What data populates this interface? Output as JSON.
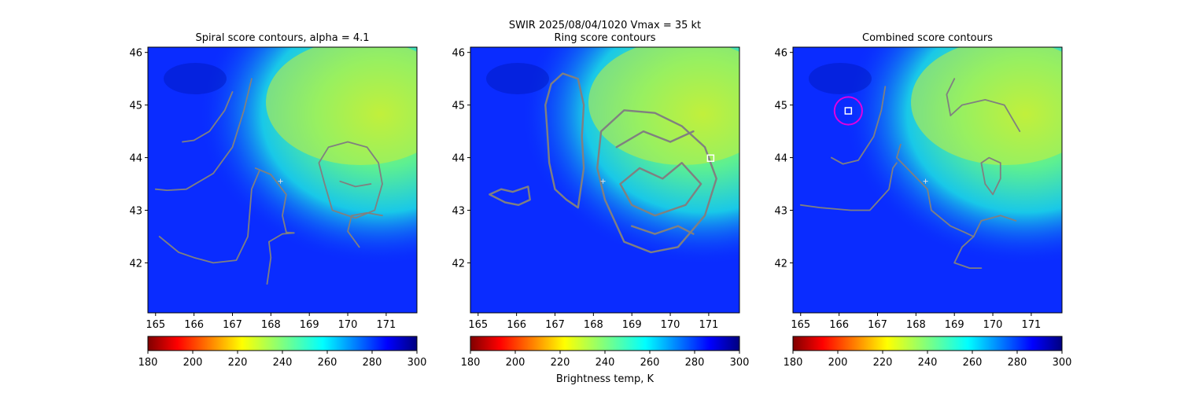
{
  "figure": {
    "suptitle_line1": "SWIR  2025/08/04/1020    Vmax = 35 kt",
    "colorbar_label": "Brightness temp, K"
  },
  "chart_data": [
    {
      "type": "heatmap",
      "title": "Spiral score contours, alpha =  4.1",
      "xlim": [
        164.8,
        171.8
      ],
      "ylim": [
        41.05,
        46.1
      ],
      "xticks": [
        165,
        166,
        167,
        168,
        169,
        170,
        171
      ],
      "yticks": [
        42,
        43,
        44,
        45,
        46
      ],
      "colorbar": {
        "cmap": "jet_r",
        "range": [
          180,
          300
        ],
        "ticks": [
          180,
          200,
          220,
          240,
          260,
          280,
          300
        ]
      },
      "center_marker": {
        "x": 168.25,
        "y": 43.55,
        "style": "plus"
      },
      "contours": [
        [
          [
            165.7,
            44.3
          ],
          [
            166.0,
            44.33
          ],
          [
            166.4,
            44.5
          ],
          [
            166.8,
            44.9
          ],
          [
            167.0,
            45.25
          ]
        ],
        [
          [
            165.0,
            43.4
          ],
          [
            165.3,
            43.38
          ],
          [
            165.8,
            43.4
          ],
          [
            166.5,
            43.7
          ],
          [
            167.0,
            44.2
          ],
          [
            167.3,
            44.9
          ],
          [
            167.5,
            45.5
          ]
        ],
        [
          [
            167.6,
            43.8
          ],
          [
            168.0,
            43.68
          ],
          [
            168.4,
            43.3
          ],
          [
            168.3,
            42.9
          ],
          [
            168.4,
            42.58
          ],
          [
            168.6,
            42.57
          ]
        ],
        [
          [
            165.1,
            42.5
          ],
          [
            165.6,
            42.2
          ],
          [
            166.0,
            42.1
          ],
          [
            166.5,
            42.0
          ],
          [
            167.1,
            42.05
          ],
          [
            167.4,
            42.5
          ],
          [
            167.5,
            43.4
          ],
          [
            167.7,
            43.75
          ]
        ],
        [
          [
            167.9,
            41.6
          ],
          [
            168.0,
            42.1
          ],
          [
            167.95,
            42.4
          ],
          [
            168.3,
            42.55
          ],
          [
            168.6,
            42.57
          ]
        ],
        [
          [
            169.4,
            43.5
          ],
          [
            169.25,
            43.9
          ],
          [
            169.5,
            44.2
          ],
          [
            170.0,
            44.3
          ],
          [
            170.5,
            44.2
          ],
          [
            170.8,
            43.9
          ],
          [
            170.9,
            43.5
          ],
          [
            170.7,
            43.0
          ],
          [
            170.2,
            42.85
          ],
          [
            169.6,
            43.0
          ],
          [
            169.4,
            43.5
          ]
        ],
        [
          [
            170.3,
            42.3
          ],
          [
            170.0,
            42.6
          ],
          [
            170.1,
            42.9
          ],
          [
            170.5,
            42.95
          ],
          [
            170.9,
            42.9
          ]
        ],
        [
          [
            169.8,
            43.55
          ],
          [
            170.2,
            43.45
          ],
          [
            170.6,
            43.5
          ]
        ]
      ],
      "markers": []
    },
    {
      "type": "heatmap",
      "title": "Ring score contours",
      "xlim": [
        164.8,
        171.8
      ],
      "ylim": [
        41.05,
        46.1
      ],
      "xticks": [
        165,
        166,
        167,
        168,
        169,
        170,
        171
      ],
      "yticks": [
        42,
        43,
        44,
        45,
        46
      ],
      "colorbar": {
        "cmap": "jet_r",
        "range": [
          180,
          300
        ],
        "ticks": [
          180,
          200,
          220,
          240,
          260,
          280,
          300
        ]
      },
      "center_marker": {
        "x": 168.25,
        "y": 43.55,
        "style": "plus"
      },
      "contours": [
        [
          [
            167.6,
            43.05
          ],
          [
            167.3,
            43.2
          ],
          [
            167.0,
            43.4
          ],
          [
            166.85,
            43.9
          ],
          [
            166.8,
            44.5
          ],
          [
            166.75,
            45.0
          ],
          [
            166.9,
            45.4
          ],
          [
            167.2,
            45.6
          ],
          [
            167.6,
            45.5
          ],
          [
            167.75,
            45.0
          ],
          [
            167.7,
            44.4
          ],
          [
            167.75,
            43.8
          ],
          [
            167.6,
            43.05
          ]
        ],
        [
          [
            165.3,
            43.3
          ],
          [
            165.6,
            43.4
          ],
          [
            165.9,
            43.35
          ],
          [
            166.3,
            43.45
          ],
          [
            166.35,
            43.2
          ],
          [
            166.05,
            43.1
          ],
          [
            165.7,
            43.15
          ],
          [
            165.3,
            43.3
          ]
        ],
        [
          [
            168.3,
            43.2
          ],
          [
            168.1,
            43.8
          ],
          [
            168.2,
            44.5
          ],
          [
            168.8,
            44.9
          ],
          [
            169.6,
            44.85
          ],
          [
            170.3,
            44.6
          ],
          [
            170.9,
            44.2
          ],
          [
            171.2,
            43.6
          ],
          [
            170.9,
            42.9
          ],
          [
            170.2,
            42.3
          ],
          [
            169.5,
            42.2
          ],
          [
            168.8,
            42.4
          ],
          [
            168.3,
            43.2
          ]
        ],
        [
          [
            168.7,
            43.5
          ],
          [
            169.2,
            43.8
          ],
          [
            169.8,
            43.6
          ],
          [
            170.3,
            43.9
          ],
          [
            170.8,
            43.5
          ],
          [
            170.4,
            43.1
          ],
          [
            169.6,
            42.9
          ],
          [
            169.0,
            43.1
          ],
          [
            168.7,
            43.5
          ]
        ],
        [
          [
            168.6,
            44.2
          ],
          [
            169.3,
            44.5
          ],
          [
            170.0,
            44.3
          ],
          [
            170.6,
            44.5
          ]
        ],
        [
          [
            169.0,
            42.7
          ],
          [
            169.6,
            42.55
          ],
          [
            170.2,
            42.7
          ],
          [
            170.6,
            42.55
          ]
        ]
      ],
      "markers": [
        {
          "x": 171.05,
          "y": 43.99,
          "type": "square",
          "color": "#ffffff"
        }
      ]
    },
    {
      "type": "heatmap",
      "title": "Combined score contours",
      "xlim": [
        164.8,
        171.8
      ],
      "ylim": [
        41.05,
        46.1
      ],
      "xticks": [
        165,
        166,
        167,
        168,
        169,
        170,
        171
      ],
      "yticks": [
        42,
        43,
        44,
        45,
        46
      ],
      "colorbar": {
        "cmap": "jet_r",
        "range": [
          180,
          300
        ],
        "ticks": [
          180,
          200,
          220,
          240,
          260,
          280,
          300
        ]
      },
      "center_marker": {
        "x": 168.25,
        "y": 43.55,
        "style": "plus"
      },
      "contours": [
        [
          [
            165.0,
            43.1
          ],
          [
            165.5,
            43.05
          ],
          [
            166.3,
            43.0
          ],
          [
            166.8,
            43.0
          ],
          [
            167.3,
            43.4
          ],
          [
            167.4,
            43.8
          ],
          [
            167.5,
            43.9
          ]
        ],
        [
          [
            165.8,
            44.0
          ],
          [
            166.1,
            43.88
          ],
          [
            166.5,
            43.95
          ],
          [
            166.9,
            44.4
          ],
          [
            167.1,
            44.9
          ],
          [
            167.2,
            45.35
          ]
        ],
        [
          [
            167.6,
            44.25
          ],
          [
            167.5,
            44.0
          ],
          [
            167.9,
            43.7
          ],
          [
            168.3,
            43.4
          ],
          [
            168.4,
            43.0
          ],
          [
            168.9,
            42.7
          ],
          [
            169.3,
            42.57
          ],
          [
            169.5,
            42.5
          ]
        ],
        [
          [
            169.8,
            43.5
          ],
          [
            169.7,
            43.9
          ],
          [
            169.9,
            44.0
          ],
          [
            170.2,
            43.9
          ],
          [
            170.2,
            43.6
          ],
          [
            170.0,
            43.3
          ],
          [
            169.8,
            43.5
          ]
        ],
        [
          [
            168.9,
            44.8
          ],
          [
            169.2,
            45.0
          ],
          [
            169.8,
            45.1
          ],
          [
            170.3,
            45.0
          ],
          [
            170.7,
            44.5
          ]
        ],
        [
          [
            169.5,
            42.5
          ],
          [
            169.7,
            42.8
          ],
          [
            170.2,
            42.9
          ],
          [
            170.6,
            42.8
          ]
        ],
        [
          [
            169.5,
            42.5
          ],
          [
            169.2,
            42.3
          ],
          [
            169.0,
            42.0
          ],
          [
            169.4,
            41.9
          ],
          [
            169.7,
            41.9
          ]
        ],
        [
          [
            168.9,
            44.8
          ],
          [
            168.8,
            45.2
          ],
          [
            169.0,
            45.5
          ]
        ]
      ],
      "markers": [
        {
          "x": 166.24,
          "y": 44.89,
          "type": "square",
          "color": "#ffffff"
        },
        {
          "x": 166.24,
          "y": 44.89,
          "type": "circle",
          "color": "#e000e0",
          "radius_deg": 0.36
        }
      ]
    }
  ],
  "colors": {
    "contour": "#808080",
    "background": "#0a2cff"
  }
}
